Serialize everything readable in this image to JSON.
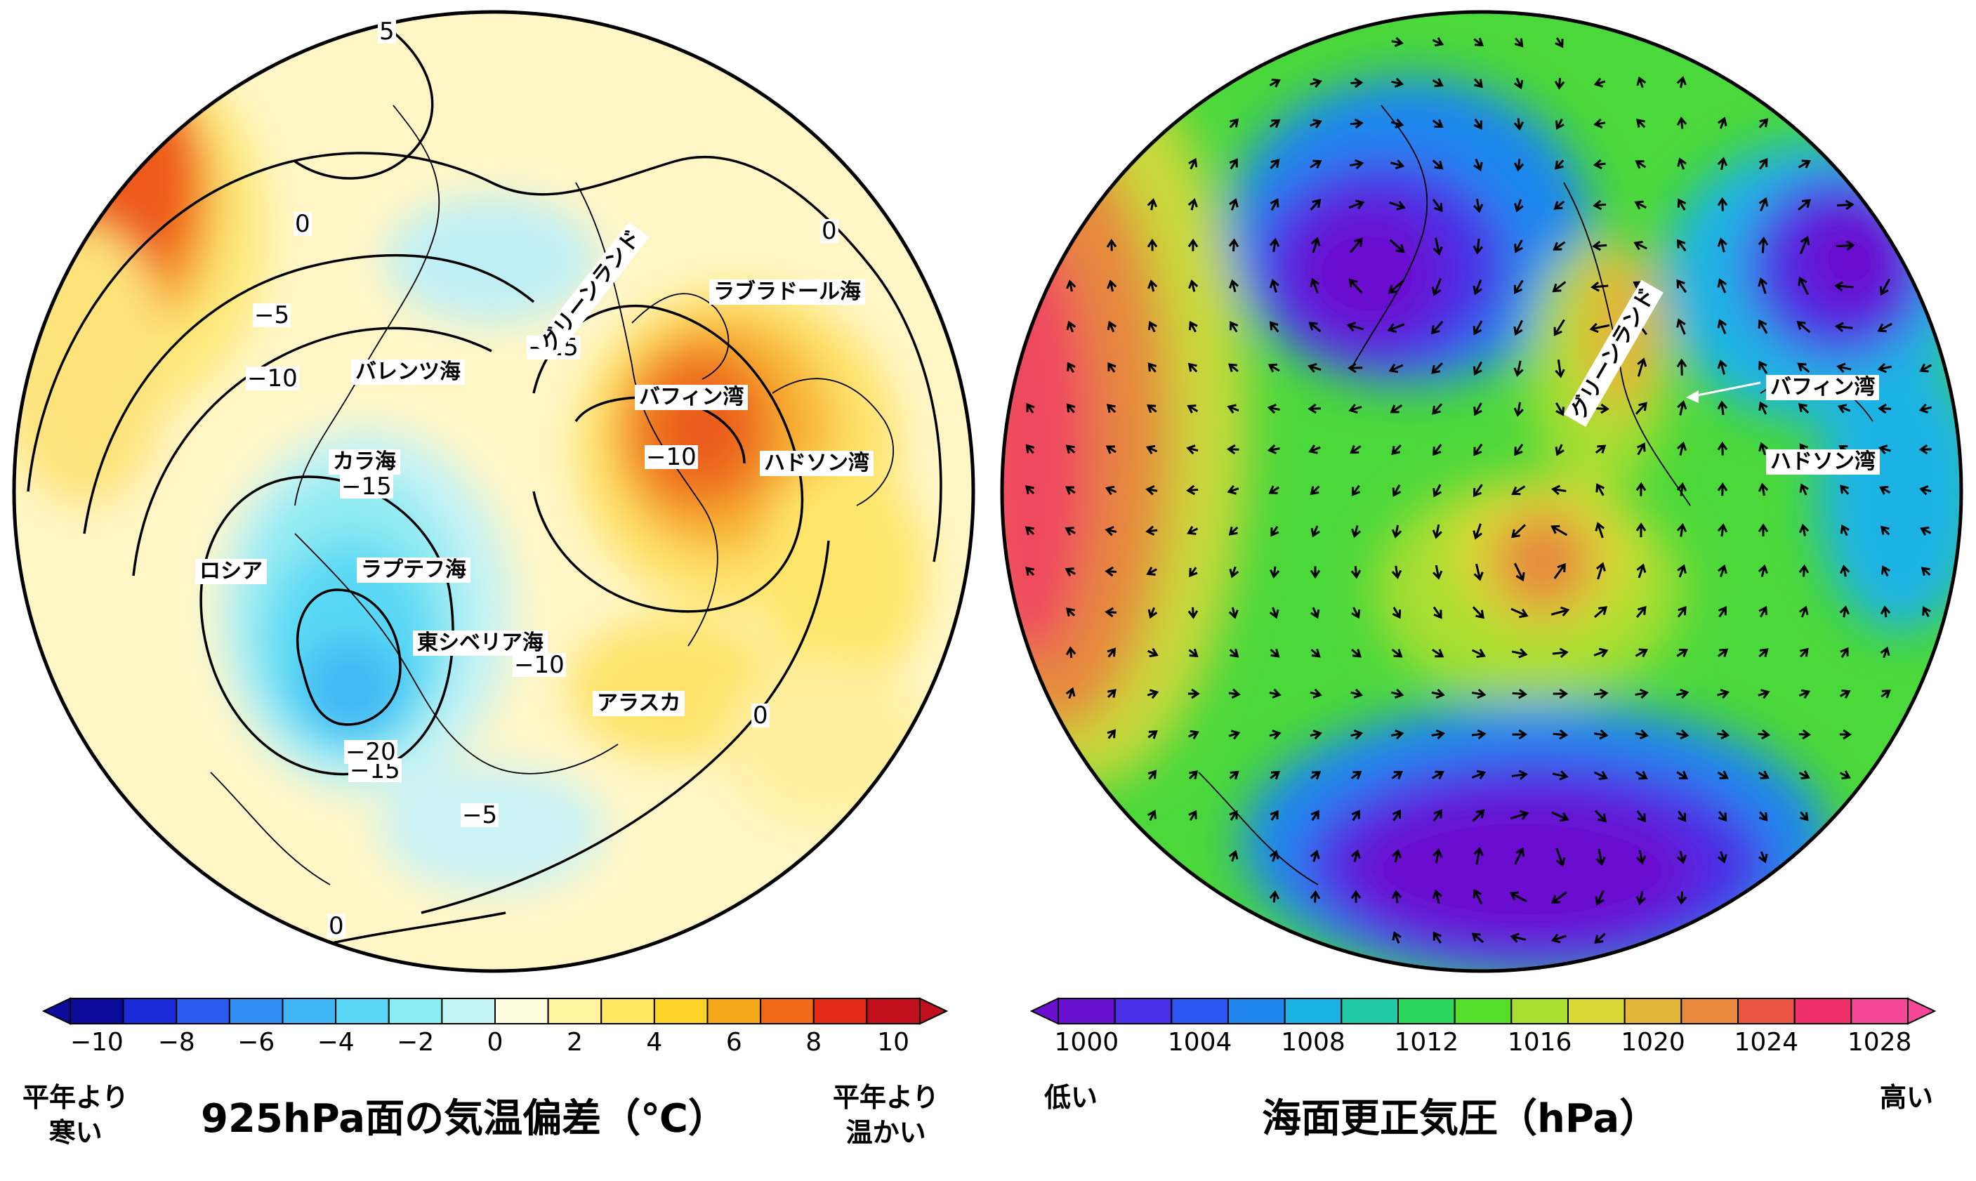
{
  "left_panel": {
    "labels": {
      "barents": "バレンツ海",
      "kara": "カラ海",
      "russia": "ロシア",
      "laptev": "ラプテフ海",
      "east_siberian": "東シベリア海",
      "alaska": "アラスカ",
      "greenland": "グリーンランド",
      "labrador": "ラブラドール海",
      "baffin": "バフィン湾",
      "hudson": "ハドソン湾"
    },
    "contour_labels": {
      "c5_top": "5",
      "c0_a": "0",
      "c0_b": "0",
      "c0_c": "0",
      "c0_d": "0",
      "cm5_a": "−5",
      "cm5_b": "−5",
      "cm10_a": "−10",
      "cm10_b": "−10",
      "cm10_c": "−10",
      "cm15_a": "−15",
      "cm15_b": "−15",
      "cm15_c": "−15",
      "cm20": "−20"
    },
    "colorbar": {
      "ticks": [
        "−10",
        "−8",
        "−6",
        "−4",
        "−2",
        "0",
        "2",
        "4",
        "6",
        "8",
        "10"
      ],
      "colors": [
        "#0b0b9a",
        "#1a2ad6",
        "#2a5cf2",
        "#2f8ef4",
        "#3fb6f6",
        "#5ad6f7",
        "#88ecf5",
        "#c4f5f5",
        "#fffde0",
        "#fff3a0",
        "#ffe760",
        "#ffd227",
        "#f5a81a",
        "#f06a18",
        "#e52a18",
        "#c0101c"
      ],
      "left_caption": "平年より\n寒い",
      "right_caption": "平年より\n温かい",
      "title": "925hPa面の気温偏差（℃）"
    }
  },
  "right_panel": {
    "labels": {
      "greenland": "グリーンランド",
      "baffin": "バフィン湾",
      "hudson": "ハドソン湾"
    },
    "colorbar": {
      "ticks": [
        "1000",
        "1004",
        "1008",
        "1012",
        "1016",
        "1020",
        "1024",
        "1028"
      ],
      "colors": [
        "#6a0fd0",
        "#4a2ee6",
        "#2a55f0",
        "#1f86ef",
        "#1cb2e4",
        "#20c9a8",
        "#2bd65c",
        "#56de2a",
        "#a8de30",
        "#d8d836",
        "#e2b83a",
        "#e6883e",
        "#ec5444",
        "#f0306a",
        "#f4479a"
      ],
      "left_caption": "低い",
      "right_caption": "高い",
      "title": "海面更正気圧（hPa）"
    }
  }
}
